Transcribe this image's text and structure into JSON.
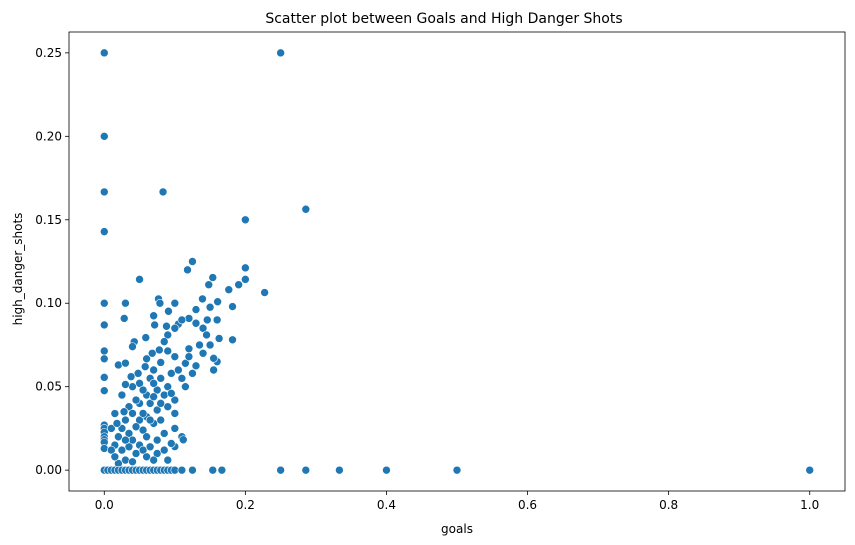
{
  "chart_data": {
    "type": "scatter",
    "title": "Scatter plot between Goals and High Danger Shots",
    "xlabel": "goals",
    "ylabel": "high_danger_shots",
    "xlim": [
      -0.05,
      1.05
    ],
    "ylim": [
      -0.0125,
      0.2625
    ],
    "xticks": [
      {
        "value": 0.0,
        "label": "0.0"
      },
      {
        "value": 0.2,
        "label": "0.2"
      },
      {
        "value": 0.4,
        "label": "0.4"
      },
      {
        "value": 0.6,
        "label": "0.6"
      },
      {
        "value": 0.8,
        "label": "0.8"
      },
      {
        "value": 1.0,
        "label": "1.0"
      }
    ],
    "yticks": [
      {
        "value": 0.0,
        "label": "0.00"
      },
      {
        "value": 0.05,
        "label": "0.05"
      },
      {
        "value": 0.1,
        "label": "0.10"
      },
      {
        "value": 0.15,
        "label": "0.15"
      },
      {
        "value": 0.2,
        "label": "0.20"
      },
      {
        "value": 0.25,
        "label": "0.25"
      }
    ],
    "grid": false,
    "legend": "none",
    "point_color": "#1f77b4",
    "points": [
      [
        0.0,
        0.25
      ],
      [
        0.0,
        0.2
      ],
      [
        0.0,
        0.1667
      ],
      [
        0.0,
        0.1429
      ],
      [
        0.0,
        0.1
      ],
      [
        0.0,
        0.087
      ],
      [
        0.0,
        0.0714
      ],
      [
        0.0,
        0.0667
      ],
      [
        0.0,
        0.0556
      ],
      [
        0.0,
        0.0476
      ],
      [
        0.0,
        0.027
      ],
      [
        0.0,
        0.025
      ],
      [
        0.0,
        0.0227
      ],
      [
        0.0,
        0.02
      ],
      [
        0.0,
        0.0182
      ],
      [
        0.0,
        0.0167
      ],
      [
        0.0,
        0.013
      ],
      [
        0.0,
        0.0
      ],
      [
        0.25,
        0.25
      ],
      [
        0.0833,
        0.1667
      ],
      [
        0.2,
        0.15
      ],
      [
        0.2857,
        0.1563
      ],
      [
        0.125,
        0.125
      ],
      [
        0.118,
        0.12
      ],
      [
        0.2,
        0.1212
      ],
      [
        0.2,
        0.1143
      ],
      [
        0.1538,
        0.1154
      ],
      [
        0.05,
        0.1143
      ],
      [
        0.1481,
        0.1111
      ],
      [
        0.1905,
        0.1111
      ],
      [
        0.2273,
        0.1064
      ],
      [
        0.1765,
        0.1081
      ],
      [
        0.1818,
        0.098
      ],
      [
        0.1607,
        0.1009
      ],
      [
        0.0769,
        0.1026
      ],
      [
        0.0789,
        0.1
      ],
      [
        0.03,
        0.1
      ],
      [
        0.1,
        0.1
      ],
      [
        0.1392,
        0.1026
      ],
      [
        0.13,
        0.0962
      ],
      [
        0.15,
        0.0976
      ],
      [
        0.12,
        0.0909
      ],
      [
        0.091,
        0.0952
      ],
      [
        0.07,
        0.0925
      ],
      [
        0.0283,
        0.0909
      ],
      [
        0.16,
        0.09
      ],
      [
        0.105,
        0.0875
      ],
      [
        0.146,
        0.09
      ],
      [
        0.0882,
        0.0862
      ],
      [
        0.0588,
        0.0794
      ],
      [
        0.0714,
        0.087
      ],
      [
        0.0425,
        0.0769
      ],
      [
        0.04,
        0.074
      ],
      [
        0.1818,
        0.0781
      ],
      [
        0.1628,
        0.0789
      ],
      [
        0.02,
        0.063
      ],
      [
        0.03,
        0.0641
      ],
      [
        0.06,
        0.0667
      ],
      [
        0.09,
        0.0714
      ],
      [
        0.12,
        0.0727
      ],
      [
        0.14,
        0.07
      ],
      [
        0.16,
        0.065
      ],
      [
        0.155,
        0.06
      ],
      [
        0.13,
        0.0625
      ],
      [
        0.1,
        0.068
      ],
      [
        0.08,
        0.0645
      ],
      [
        0.07,
        0.06
      ],
      [
        0.065,
        0.055
      ],
      [
        0.05,
        0.052
      ],
      [
        0.04,
        0.05
      ],
      [
        0.03,
        0.0513
      ],
      [
        0.11,
        0.055
      ],
      [
        0.125,
        0.058
      ],
      [
        0.09,
        0.05
      ],
      [
        0.075,
        0.048
      ],
      [
        0.06,
        0.045
      ],
      [
        0.05,
        0.04
      ],
      [
        0.035,
        0.038
      ],
      [
        0.085,
        0.045
      ],
      [
        0.1,
        0.042
      ],
      [
        0.115,
        0.05
      ],
      [
        0.095,
        0.058
      ],
      [
        0.08,
        0.055
      ],
      [
        0.07,
        0.052
      ],
      [
        0.055,
        0.048
      ],
      [
        0.045,
        0.042
      ],
      [
        0.065,
        0.04
      ],
      [
        0.075,
        0.036
      ],
      [
        0.09,
        0.038
      ],
      [
        0.1,
        0.034
      ],
      [
        0.06,
        0.032
      ],
      [
        0.05,
        0.03
      ],
      [
        0.04,
        0.034
      ],
      [
        0.03,
        0.03
      ],
      [
        0.025,
        0.025
      ],
      [
        0.035,
        0.022
      ],
      [
        0.045,
        0.026
      ],
      [
        0.055,
        0.024
      ],
      [
        0.07,
        0.028
      ],
      [
        0.08,
        0.03
      ],
      [
        0.02,
        0.02
      ],
      [
        0.015,
        0.015
      ],
      [
        0.01,
        0.012
      ],
      [
        0.025,
        0.012
      ],
      [
        0.04,
        0.018
      ],
      [
        0.05,
        0.015
      ],
      [
        0.06,
        0.02
      ],
      [
        0.075,
        0.018
      ],
      [
        0.085,
        0.022
      ],
      [
        0.1,
        0.025
      ],
      [
        0.11,
        0.02
      ],
      [
        0.112,
        0.0182
      ],
      [
        0.1,
        0.0141
      ],
      [
        0.09,
        0.006
      ],
      [
        0.03,
        0.006
      ],
      [
        0.02,
        0.004
      ],
      [
        0.04,
        0.005
      ],
      [
        0.025,
        0.045
      ],
      [
        0.015,
        0.0339
      ],
      [
        0.01,
        0.025
      ],
      [
        0.065,
        0.03
      ],
      [
        0.07,
        0.044
      ],
      [
        0.08,
        0.04
      ],
      [
        0.095,
        0.046
      ],
      [
        0.105,
        0.06
      ],
      [
        0.115,
        0.064
      ],
      [
        0.12,
        0.068
      ],
      [
        0.135,
        0.075
      ],
      [
        0.14,
        0.085
      ],
      [
        0.145,
        0.081
      ],
      [
        0.15,
        0.075
      ],
      [
        0.155,
        0.067
      ],
      [
        0.13,
        0.088
      ],
      [
        0.11,
        0.09
      ],
      [
        0.1,
        0.085
      ],
      [
        0.09,
        0.081
      ],
      [
        0.085,
        0.077
      ],
      [
        0.078,
        0.072
      ],
      [
        0.068,
        0.07
      ],
      [
        0.058,
        0.062
      ],
      [
        0.048,
        0.058
      ],
      [
        0.038,
        0.056
      ],
      [
        0.028,
        0.035
      ],
      [
        0.018,
        0.028
      ],
      [
        0.055,
        0.034
      ],
      [
        0.035,
        0.014
      ],
      [
        0.045,
        0.01
      ],
      [
        0.055,
        0.012
      ],
      [
        0.065,
        0.014
      ],
      [
        0.075,
        0.01
      ],
      [
        0.085,
        0.012
      ],
      [
        0.095,
        0.016
      ],
      [
        0.06,
        0.008
      ],
      [
        0.07,
        0.006
      ],
      [
        0.015,
        0.008
      ],
      [
        0.03,
        0.018
      ],
      [
        0.0,
        0.0
      ],
      [
        0.005,
        0.0
      ],
      [
        0.01,
        0.0
      ],
      [
        0.015,
        0.0
      ],
      [
        0.02,
        0.0
      ],
      [
        0.025,
        0.0
      ],
      [
        0.03,
        0.0
      ],
      [
        0.035,
        0.0
      ],
      [
        0.04,
        0.0
      ],
      [
        0.045,
        0.0
      ],
      [
        0.05,
        0.0
      ],
      [
        0.055,
        0.0
      ],
      [
        0.06,
        0.0
      ],
      [
        0.065,
        0.0
      ],
      [
        0.07,
        0.0
      ],
      [
        0.075,
        0.0
      ],
      [
        0.08,
        0.0
      ],
      [
        0.085,
        0.0
      ],
      [
        0.09,
        0.0
      ],
      [
        0.095,
        0.0
      ],
      [
        0.1,
        0.0
      ],
      [
        0.11,
        0.0
      ],
      [
        0.125,
        0.0
      ],
      [
        0.1538,
        0.0
      ],
      [
        0.1667,
        0.0
      ],
      [
        0.25,
        0.0
      ],
      [
        0.2857,
        0.0
      ],
      [
        0.3333,
        0.0
      ],
      [
        0.4,
        0.0
      ],
      [
        0.5,
        0.0
      ],
      [
        1.0,
        0.0
      ]
    ]
  }
}
